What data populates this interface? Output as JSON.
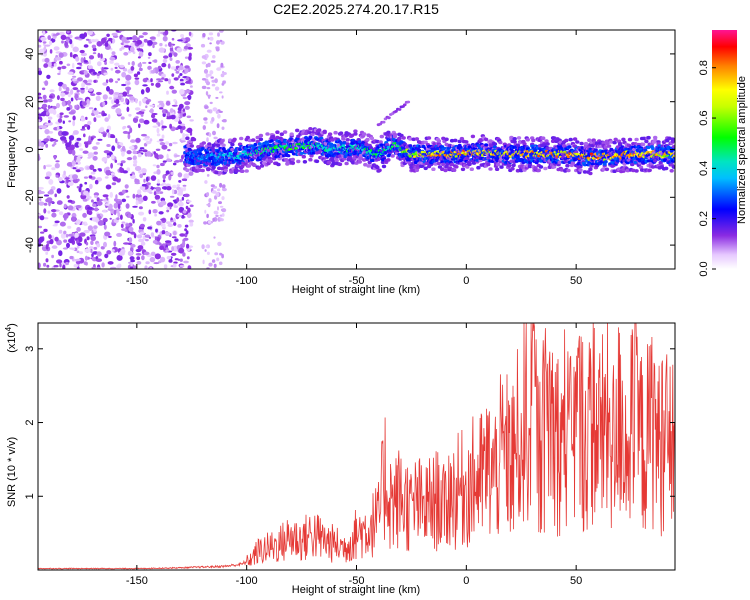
{
  "title": "C2E2.2025.274.20.17.R15",
  "chart_data": [
    {
      "type": "heatmap",
      "title": "C2E2.2025.274.20.17.R15",
      "xlabel": "Height of straight line (km)",
      "ylabel": "Frequency (Hz)",
      "xlim": [
        -195,
        95
      ],
      "ylim": [
        -50,
        50
      ],
      "x_ticks": [
        "-150",
        "-100",
        "-50",
        "0",
        "50"
      ],
      "x_tick_values": [
        -150,
        -100,
        -50,
        0,
        50
      ],
      "y_ticks": [
        "-40",
        "-20",
        "0",
        "20",
        "40"
      ],
      "y_tick_values": [
        -40,
        -20,
        0,
        20,
        40
      ],
      "colorbar": {
        "label": "Normalized spectral amplitude",
        "range": [
          0,
          0.95
        ],
        "ticks": [
          "0.0",
          "0.2",
          "0.4",
          "0.6",
          "0.8"
        ],
        "tick_values": [
          0.0,
          0.2,
          0.4,
          0.6,
          0.8
        ],
        "colormap": "rainbow (white-violet-blue-cyan-green-yellow-red-magenta)"
      },
      "ridge": {
        "description_points_x": [
          -128,
          -120,
          -110,
          -100,
          -90,
          -80,
          -70,
          -60,
          -50,
          -40,
          -33,
          -25,
          -15,
          -5,
          5,
          15,
          25,
          35,
          45,
          55,
          65,
          75,
          85,
          95
        ],
        "center_frequency_hz": [
          -2,
          -3,
          -3,
          -2,
          0,
          1,
          2,
          0,
          1,
          -2,
          2,
          -2,
          -2,
          -2,
          -1,
          -2,
          -2,
          -2,
          -2,
          -3,
          -3,
          -2,
          -2,
          -2
        ],
        "amplitude": [
          0.3,
          0.35,
          0.4,
          0.45,
          0.5,
          0.55,
          0.5,
          0.45,
          0.5,
          0.5,
          0.5,
          0.7,
          0.8,
          0.82,
          0.8,
          0.75,
          0.8,
          0.82,
          0.82,
          0.85,
          0.8,
          0.8,
          0.78,
          0.75
        ]
      },
      "noise_region_x": [
        -195,
        -125
      ],
      "grid": false
    },
    {
      "type": "line",
      "xlabel": "Height of straight line (km)",
      "ylabel": "SNR (10 * v/v)",
      "y_multiplier_label": "(x10",
      "y_multiplier_exp": "4",
      "y_multiplier_close": ")",
      "xlim": [
        -195,
        95
      ],
      "ylim": [
        0,
        3.35
      ],
      "x_ticks": [
        "-150",
        "-100",
        "-50",
        "0",
        "50"
      ],
      "x_tick_values": [
        -150,
        -100,
        -50,
        0,
        50
      ],
      "y_ticks": [
        "1",
        "2",
        "3"
      ],
      "y_tick_values": [
        1,
        2,
        3
      ],
      "color": "#e53935",
      "series": [
        {
          "x": [
            -195,
            -170,
            -150,
            -130,
            -110,
            -102,
            -98,
            -95,
            -90,
            -85,
            -80,
            -75,
            -70,
            -65,
            -60,
            -55,
            -50,
            -45,
            -40,
            -37,
            -35,
            -33,
            -30,
            -27,
            -25,
            -22,
            -20,
            -17,
            -15,
            -12,
            -10,
            -7,
            -5,
            -3,
            0,
            3,
            5,
            8,
            10,
            13,
            15,
            18,
            20,
            23,
            25,
            27,
            30,
            33,
            35,
            38,
            40,
            43,
            45,
            48,
            50,
            53,
            55,
            58,
            60,
            63,
            65,
            68,
            70,
            73,
            75,
            78,
            80,
            83,
            85,
            88,
            90,
            93,
            95
          ],
          "y": [
            0.02,
            0.02,
            0.02,
            0.03,
            0.05,
            0.08,
            0.15,
            0.25,
            0.3,
            0.35,
            0.45,
            0.4,
            0.5,
            0.4,
            0.35,
            0.3,
            0.5,
            0.55,
            0.7,
            1.3,
            1.0,
            0.9,
            1.0,
            0.9,
            0.8,
            0.95,
            0.8,
            0.9,
            0.9,
            1.0,
            0.8,
            1.1,
            1.0,
            1.1,
            1.1,
            1.2,
            1.2,
            1.3,
            1.4,
            1.3,
            1.5,
            1.6,
            1.4,
            1.7,
            1.9,
            2.0,
            2.6,
            1.5,
            1.8,
            2.2,
            1.9,
            1.7,
            2.0,
            1.6,
            2.1,
            1.9,
            1.7,
            2.2,
            1.8,
            1.9,
            2.0,
            1.5,
            2.3,
            1.6,
            1.9,
            2.0,
            1.7,
            1.8,
            2.1,
            1.6,
            2.0,
            1.4,
            1.9
          ]
        }
      ],
      "grid": false
    }
  ]
}
